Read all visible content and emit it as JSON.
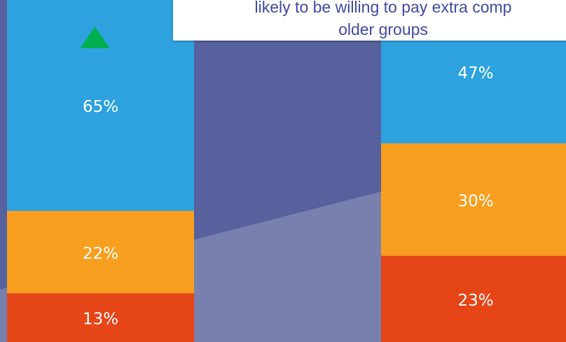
{
  "colors": {
    "background_top": "#56619e",
    "background_bottom": "#7880ae",
    "growth_arrow": "#00b050"
  },
  "callout": {
    "line1": "likely to be willing to pay extra comp",
    "line2": "older groups"
  },
  "chart_data": {
    "type": "bar",
    "stacked": true,
    "categories": [
      "",
      ""
    ],
    "series": [
      {
        "color": "#e64517",
        "values": [
          13,
          23
        ],
        "labels": [
          "13%",
          "23%"
        ]
      },
      {
        "color": "#f89f1f",
        "values": [
          22,
          30
        ],
        "labels": [
          "22%",
          "30%"
        ]
      },
      {
        "color": "#2da2df",
        "values": [
          65,
          47
        ],
        "labels": [
          "65%",
          "47%"
        ]
      }
    ],
    "ylim": [
      0,
      100
    ],
    "markers": [
      {
        "category_index": 0,
        "shape": "triangle-up",
        "icon": "up-arrow-icon",
        "color": "#00b050"
      }
    ],
    "grid": false,
    "legend": "none"
  }
}
